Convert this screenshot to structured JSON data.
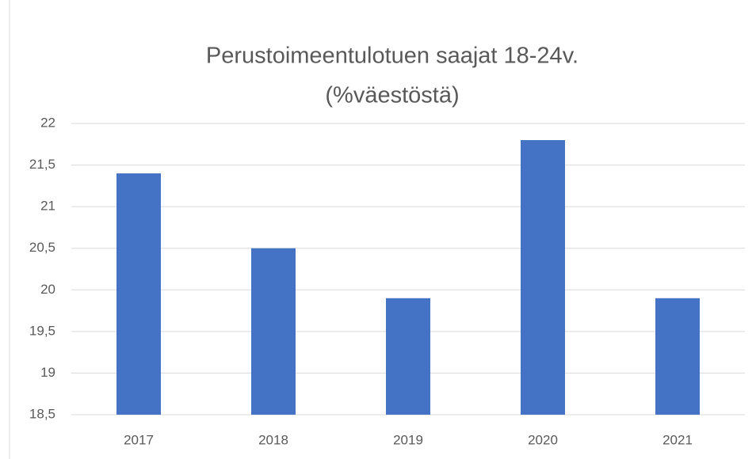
{
  "chart_data": {
    "type": "bar",
    "title": [
      "Perustoimeentulotuen saajat 18-24v.",
      "(%väestöstä)"
    ],
    "categories": [
      "2017",
      "2018",
      "2019",
      "2020",
      "2021"
    ],
    "values": [
      21.4,
      20.5,
      19.9,
      21.8,
      19.9
    ],
    "color": "#4472c4",
    "ylim": [
      18.5,
      22
    ],
    "yticks": [
      {
        "value": 18.5,
        "label": "18,5"
      },
      19,
      {
        "value": 19.5,
        "label": "19,5"
      },
      20,
      {
        "value": 20.5,
        "label": "20,5"
      },
      21,
      {
        "value": 21.5,
        "label": "21,5"
      },
      22
    ],
    "grid": true
  }
}
